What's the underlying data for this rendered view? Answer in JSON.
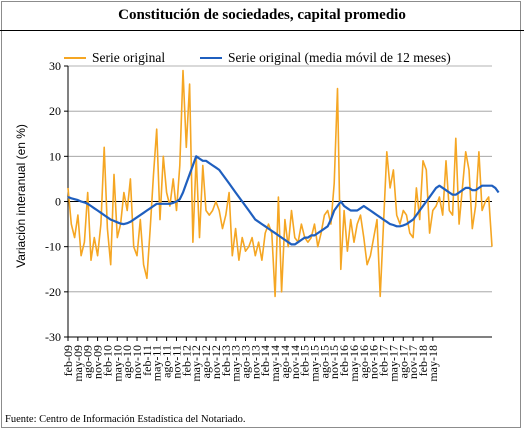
{
  "title": "Constitución de sociedades, capital promedio",
  "source": "Fuente: Centro de Información Estadística del Notariado.",
  "chart_data": {
    "type": "line",
    "ylabel": "Variación interanual (en %)",
    "xlabel": "",
    "ylim": [
      -30,
      30
    ],
    "yticks": [
      -30,
      -20,
      -10,
      0,
      10,
      20,
      30
    ],
    "grid": "horizontal",
    "legend": "top",
    "colors": {
      "original": "#f5a623",
      "ma": "#1f5fbf"
    },
    "x_tick_labels": [
      "feb-09",
      "may-09",
      "ago-09",
      "nov-09",
      "feb-10",
      "may-10",
      "ago-10",
      "nov-10",
      "feb-11",
      "may-11",
      "ago-11",
      "nov-11",
      "feb-12",
      "may-12",
      "ago-12",
      "nov-12",
      "feb-13",
      "may-13",
      "ago-13",
      "nov-13",
      "feb-14",
      "may-14",
      "ago-14",
      "nov-14",
      "feb-15",
      "may-15",
      "ago-15",
      "nov-15",
      "feb-16",
      "may-16",
      "ago-16",
      "nov-16",
      "feb-17",
      "may-17",
      "ago-17",
      "nov-17",
      "feb-18",
      "may-18"
    ],
    "series": [
      {
        "name": "Serie original",
        "values": [
          3,
          -5,
          -8,
          -3,
          -12,
          -9,
          2,
          -13,
          -8,
          -12,
          -5,
          12,
          -6,
          -14,
          6,
          -8,
          -5,
          2,
          -2,
          5,
          -10,
          -12,
          -4,
          -14,
          -17,
          -6,
          6,
          16,
          -4,
          10,
          2,
          -1,
          5,
          -2,
          8,
          29,
          12,
          26,
          -9,
          10,
          -8,
          8,
          -2,
          -3,
          -2,
          0,
          -2,
          -6,
          -3,
          2,
          -12,
          -6,
          -13,
          -8,
          -11,
          -10,
          -8,
          -12,
          -9,
          -13,
          -7,
          -5,
          -7,
          -21,
          1,
          -20,
          -4,
          -10,
          -2,
          -8,
          -9,
          -5,
          -8,
          -9,
          -8,
          -5,
          -10,
          -7,
          -3,
          -2,
          -5,
          4,
          25,
          -15,
          -2,
          -11,
          -4,
          -9,
          -5,
          -3,
          -8,
          -14,
          -12,
          -8,
          -4,
          -21,
          -5,
          11,
          3,
          7,
          -3,
          -5,
          -2,
          -3,
          -7,
          -8,
          3,
          -4,
          9,
          7,
          -7,
          -2,
          -1,
          1,
          -3,
          9,
          -2,
          -3,
          14,
          -5,
          3,
          11,
          7,
          -6,
          -1,
          11,
          -2,
          0,
          1,
          -10
        ]
      },
      {
        "name": "Serie original (media móvil de 12 meses)",
        "values": [
          1,
          0.7,
          0.5,
          0.3,
          0,
          -0.2,
          -0.5,
          -1,
          -1.5,
          -2,
          -2.5,
          -3,
          -3.5,
          -4,
          -4.3,
          -4.6,
          -4.9,
          -5,
          -4.8,
          -4.5,
          -4,
          -3.5,
          -3,
          -2.5,
          -2,
          -1.5,
          -1,
          -0.5,
          -0.5,
          -0.5,
          -0.5,
          -0.5,
          -0.3,
          0,
          0.5,
          2,
          4,
          6,
          8,
          10,
          9.5,
          9,
          9,
          8.5,
          8,
          7.5,
          7,
          6,
          5,
          4,
          3,
          2,
          1,
          0,
          -1,
          -2,
          -3,
          -4,
          -4.5,
          -5,
          -5.5,
          -6,
          -6.5,
          -7,
          -7.5,
          -8,
          -8.5,
          -9,
          -9.5,
          -9.5,
          -9,
          -8.5,
          -8,
          -8,
          -7.5,
          -7.5,
          -7,
          -6.5,
          -6,
          -5.5,
          -4,
          -2,
          -1,
          0,
          -1,
          -1.5,
          -2,
          -2,
          -2,
          -1.5,
          -1,
          -1.5,
          -2,
          -2.5,
          -3,
          -3.5,
          -4,
          -4.5,
          -5,
          -5.2,
          -5.5,
          -5.5,
          -5.3,
          -5,
          -4.5,
          -4,
          -3,
          -2,
          -1,
          0,
          1,
          2,
          3,
          3.5,
          3,
          2.5,
          2,
          1.5,
          1.5,
          2,
          2.5,
          3,
          3,
          2.5,
          2.5,
          3,
          3.5,
          3.5,
          3.5,
          3.5,
          3,
          2
        ]
      }
    ]
  }
}
